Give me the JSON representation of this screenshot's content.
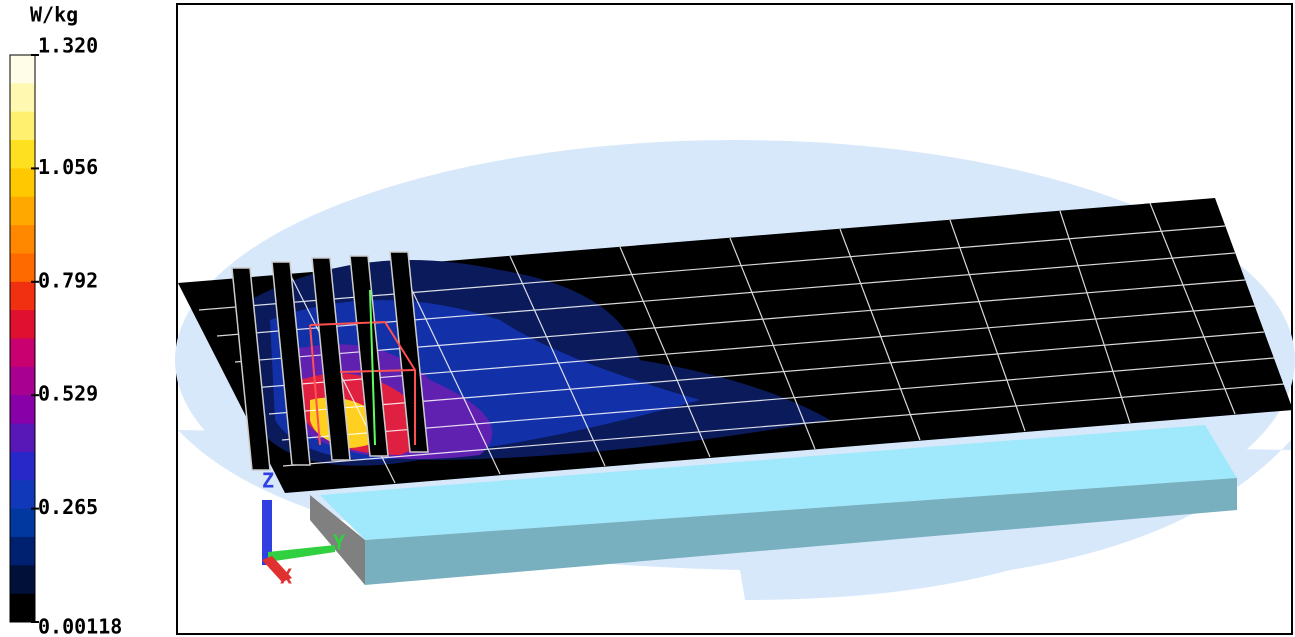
{
  "colorbar": {
    "unit": "W/kg",
    "ticks": [
      "1.320",
      "1.056",
      "0.792",
      "0.529",
      "0.265",
      "0.00118"
    ],
    "colors": [
      "#fffde8",
      "#fff8b0",
      "#fff070",
      "#ffe020",
      "#ffc800",
      "#ffa800",
      "#ff8800",
      "#ff6a00",
      "#f03010",
      "#e01030",
      "#c80070",
      "#a80090",
      "#8800a8",
      "#5818b8",
      "#2828c8",
      "#1038b8",
      "#0038a0",
      "#002070",
      "#001038",
      "#000000"
    ]
  },
  "triad": {
    "z": "Z",
    "y": "Y",
    "x": "X"
  }
}
